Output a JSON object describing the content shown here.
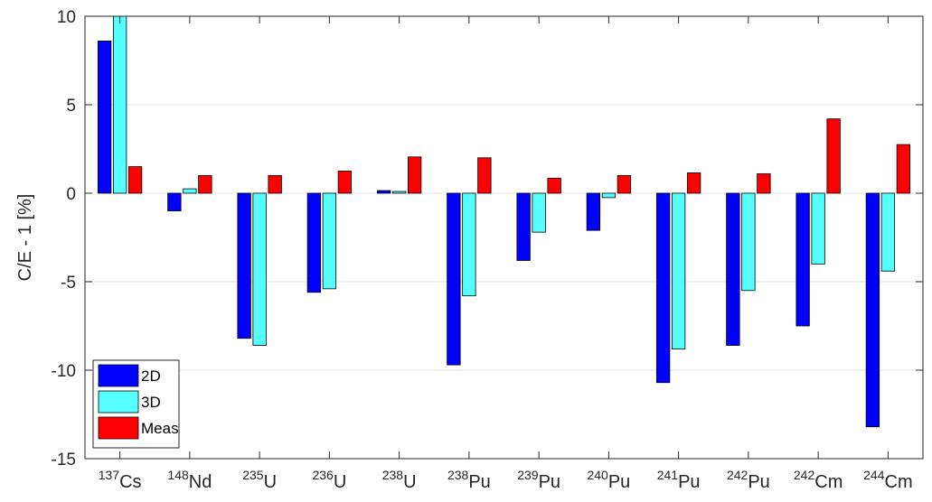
{
  "chart_data": {
    "type": "bar",
    "title": "",
    "xlabel": "",
    "ylabel": "C/E - 1 [%]",
    "ylim": [
      -15,
      10
    ],
    "yticks": [
      -15,
      -10,
      -5,
      0,
      5,
      10
    ],
    "grid": "horizontal",
    "legend_position": "bottom-left",
    "categories": [
      {
        "mass": "137",
        "symbol": "Cs"
      },
      {
        "mass": "148",
        "symbol": "Nd"
      },
      {
        "mass": "235",
        "symbol": "U"
      },
      {
        "mass": "236",
        "symbol": "U"
      },
      {
        "mass": "238",
        "symbol": "U"
      },
      {
        "mass": "238",
        "symbol": "Pu"
      },
      {
        "mass": "239",
        "symbol": "Pu"
      },
      {
        "mass": "240",
        "symbol": "Pu"
      },
      {
        "mass": "241",
        "symbol": "Pu"
      },
      {
        "mass": "242",
        "symbol": "Pu"
      },
      {
        "mass": "242",
        "symbol": "Cm"
      },
      {
        "mass": "244",
        "symbol": "Cm"
      }
    ],
    "series": [
      {
        "name": "2D",
        "color": "#0000ff",
        "values": [
          8.6,
          -1.0,
          -8.2,
          -5.6,
          0.15,
          -9.7,
          -3.8,
          -2.1,
          -10.7,
          -8.6,
          -7.5,
          -13.2
        ]
      },
      {
        "name": "3D",
        "color": "#55ffff",
        "values": [
          10.0,
          0.25,
          -8.6,
          -5.4,
          0.1,
          -5.8,
          -2.2,
          -0.25,
          -8.8,
          -5.5,
          -4.0,
          -4.4
        ]
      },
      {
        "name": "Meas",
        "color": "#ff0000",
        "values": [
          1.5,
          1.0,
          1.0,
          1.25,
          2.05,
          2.0,
          0.85,
          1.0,
          1.15,
          1.1,
          4.2,
          2.75
        ]
      }
    ]
  }
}
